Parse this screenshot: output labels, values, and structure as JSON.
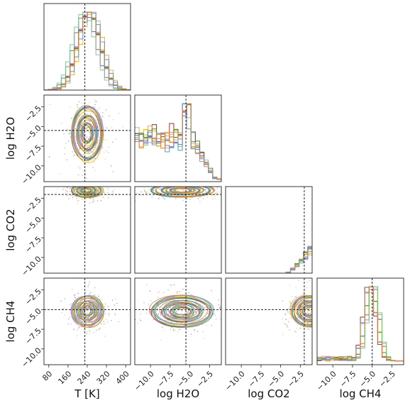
{
  "chart_data": {
    "type": "corner",
    "title": "",
    "parameters": [
      {
        "key": "T",
        "label": "T [K]",
        "range": [
          60,
          420
        ],
        "ticks": [
          80,
          160,
          240,
          320,
          400
        ],
        "truth": 230,
        "hist_center": 240
      },
      {
        "key": "H2O",
        "label": "log H2O",
        "range": [
          -12,
          -1
        ],
        "ticks": [
          -10.0,
          -7.5,
          -5.0,
          -2.5
        ],
        "truth": -5.5,
        "hist_center": -6.0
      },
      {
        "key": "CO2",
        "label": "log CO2",
        "range": [
          -12,
          -1
        ],
        "ticks": [
          -10.0,
          -7.5,
          -5.0,
          -2.5
        ],
        "truth": -2.0,
        "hist_center": -1.5
      },
      {
        "key": "CH4",
        "label": "log CH4",
        "range": [
          -12,
          -1
        ],
        "ticks": [
          -10.0,
          -7.5,
          -5.0,
          -2.5
        ],
        "truth": -5.0,
        "hist_center": -5.2
      }
    ],
    "series": [
      {
        "color": "#8a2a2a"
      },
      {
        "color": "#6f57c9"
      },
      {
        "color": "#a77bd9"
      },
      {
        "color": "#f5a623"
      },
      {
        "color": "#c7c220"
      },
      {
        "color": "#2e8b2e"
      },
      {
        "color": "#7ec97e"
      },
      {
        "color": "#4a90d9"
      },
      {
        "color": "#f07c3a"
      }
    ],
    "tick_labels": {
      "x_T": [
        "80",
        "160",
        "240",
        "320",
        "400"
      ],
      "log_axis": [
        "−10.0",
        "−7.5",
        "−5.0",
        "−2.5"
      ],
      "y_log_axis": [
        "−2.5",
        "−5.0",
        "−7.5",
        "−10.0"
      ]
    },
    "grid": false,
    "legend": "none"
  }
}
